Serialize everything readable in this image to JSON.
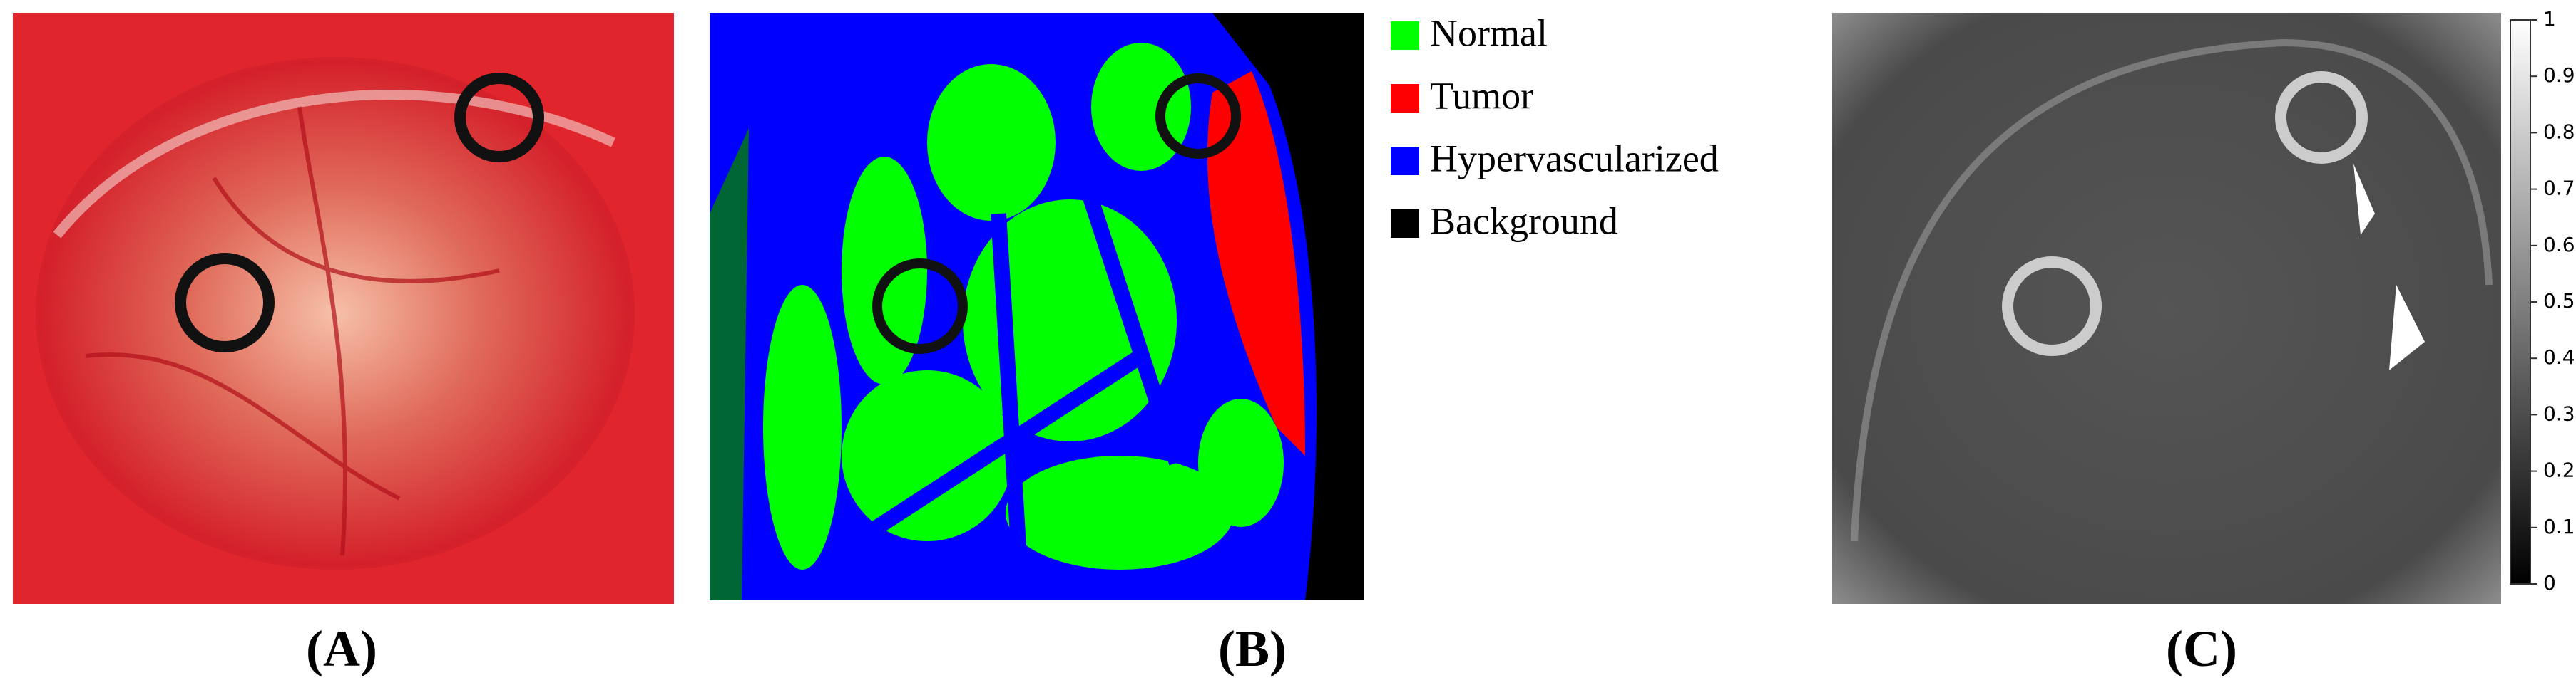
{
  "panels": [
    {
      "label": "(A)"
    },
    {
      "label": "(B)"
    },
    {
      "label": "(C)"
    }
  ],
  "legend": [
    {
      "name": "Normal",
      "color": "#00ff00"
    },
    {
      "name": "Tumor",
      "color": "#ff0000"
    },
    {
      "name": "Hypervascularized",
      "color": "#0000ff"
    },
    {
      "name": "Background",
      "color": "#000000"
    }
  ],
  "colorbar": {
    "range": [
      0,
      1
    ],
    "ticks": [
      0,
      0.1,
      0.2,
      0.3,
      0.4,
      0.5,
      0.6,
      0.7,
      0.8,
      0.9,
      1
    ]
  }
}
